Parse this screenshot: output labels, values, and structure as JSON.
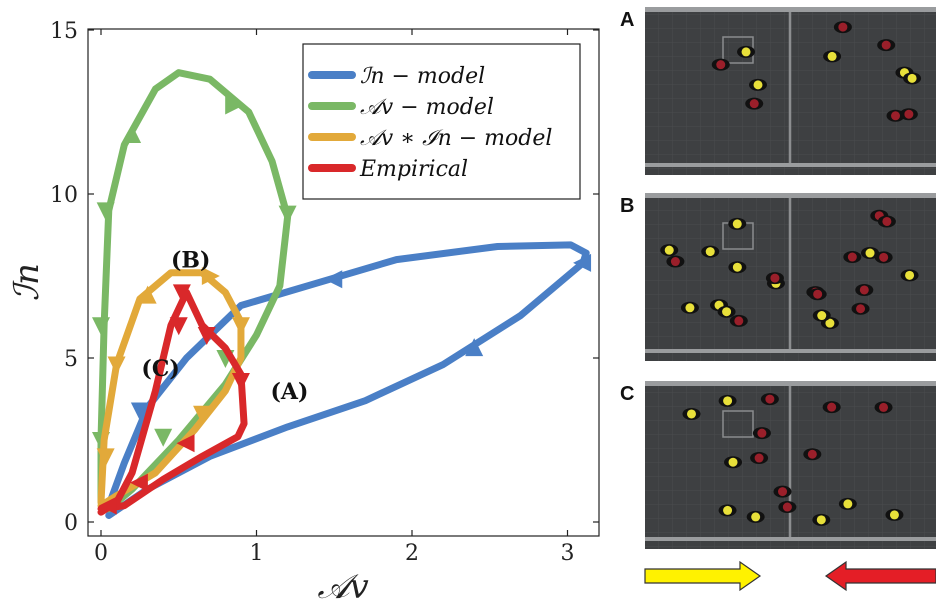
{
  "chart_data": {
    "type": "line",
    "xlabel": "𝒜v",
    "ylabel": "ℐn",
    "xlim": [
      -0.1,
      3.2
    ],
    "ylim": [
      -0.5,
      15.2
    ],
    "xticks": [
      "0",
      "1",
      "2",
      "3"
    ],
    "yticks": [
      "0",
      "5",
      "10",
      "15"
    ],
    "grid": false,
    "legend_position": "top-right",
    "legend": [
      "ℐn − model",
      "𝒜v − model",
      "𝒜v ∗ ℐn − model",
      "Empirical"
    ],
    "series": [
      {
        "name": "ℐn − model",
        "color": "#4a7fc6",
        "x": [
          0.05,
          0.3,
          0.7,
          1.2,
          1.7,
          2.2,
          2.7,
          3.1,
          3.12,
          3.02,
          2.55,
          1.9,
          1.4,
          0.9,
          0.55,
          0.3,
          0.15,
          0.05
        ],
        "y": [
          0.2,
          1.0,
          2.0,
          2.9,
          3.7,
          4.8,
          6.3,
          7.9,
          8.2,
          8.45,
          8.4,
          8.0,
          7.3,
          6.6,
          5.0,
          3.5,
          1.8,
          0.5
        ],
        "arrows": [
          [
            2.4,
            5.3,
            "up"
          ],
          [
            3.1,
            7.9,
            "left"
          ],
          [
            1.5,
            7.4,
            "left"
          ],
          [
            0.25,
            3.4,
            "down"
          ]
        ]
      },
      {
        "name": "𝒜v − model",
        "color": "#7ab865",
        "x": [
          0.0,
          0.0,
          0.02,
          0.05,
          0.15,
          0.35,
          0.5,
          0.7,
          0.95,
          1.1,
          1.2,
          1.15,
          1.0,
          0.8,
          0.5,
          0.2,
          0.05
        ],
        "y": [
          0.6,
          2.5,
          6.0,
          9.5,
          11.5,
          13.2,
          13.7,
          13.5,
          12.5,
          11.0,
          9.3,
          7.2,
          5.7,
          4.2,
          2.5,
          1.0,
          0.4
        ],
        "arrows": [
          [
            0.03,
            9.5,
            "down"
          ],
          [
            0.2,
            11.8,
            "up"
          ],
          [
            0.85,
            12.7,
            "right"
          ],
          [
            1.2,
            9.4,
            "down"
          ],
          [
            0.8,
            5.0,
            "down"
          ],
          [
            0.4,
            2.6,
            "down"
          ],
          [
            0.0,
            6.0,
            "down"
          ],
          [
            0.0,
            2.5,
            "down"
          ]
        ]
      },
      {
        "name": "𝒜v ∗ ℐn − model",
        "color": "#e2a93a",
        "x": [
          0.0,
          0.02,
          0.1,
          0.25,
          0.45,
          0.65,
          0.8,
          0.9,
          0.9,
          0.8,
          0.6,
          0.35,
          0.1,
          0.0
        ],
        "y": [
          0.6,
          2.5,
          4.8,
          6.8,
          7.6,
          7.6,
          7.0,
          6.1,
          5.0,
          4.0,
          2.8,
          1.5,
          0.8,
          0.5
        ],
        "arrows": [
          [
            0.3,
            6.9,
            "up"
          ],
          [
            0.7,
            7.5,
            "right"
          ],
          [
            0.9,
            6.0,
            "down"
          ],
          [
            0.65,
            3.3,
            "down"
          ],
          [
            0.1,
            4.8,
            "down"
          ],
          [
            0.03,
            2.0,
            "down"
          ]
        ]
      },
      {
        "name": "Empirical",
        "color": "#d9282a",
        "x": [
          0.0,
          0.1,
          0.2,
          0.35,
          0.45,
          0.55,
          0.65,
          0.8,
          0.9,
          0.92,
          0.88,
          0.65,
          0.4,
          0.15,
          0.0
        ],
        "y": [
          0.3,
          0.6,
          1.5,
          4.0,
          6.0,
          7.0,
          6.0,
          5.3,
          4.5,
          3.0,
          2.6,
          2.0,
          1.3,
          0.5,
          0.4
        ],
        "arrows": [
          [
            0.52,
            7.0,
            "down"
          ],
          [
            0.5,
            6.0,
            "down"
          ],
          [
            0.68,
            5.7,
            "down"
          ],
          [
            0.9,
            4.3,
            "down"
          ],
          [
            0.55,
            2.4,
            "left"
          ],
          [
            0.25,
            1.2,
            "left"
          ],
          [
            0.05,
            0.5,
            "left"
          ]
        ]
      }
    ],
    "annotations": [
      {
        "text": "(A)",
        "x": 1.09,
        "y": 4.0
      },
      {
        "text": "(B)",
        "x": 0.45,
        "y": 8.0
      },
      {
        "text": "(C)",
        "x": 0.26,
        "y": 4.7
      }
    ]
  },
  "panels": [
    {
      "label": "A",
      "yellow": 5,
      "red": 6
    },
    {
      "label": "B",
      "yellow": 12,
      "red": 11
    },
    {
      "label": "C",
      "yellow": 8,
      "red": 8
    }
  ],
  "arrows": {
    "left_color": "#fff200",
    "right_color": "#e41e26"
  }
}
